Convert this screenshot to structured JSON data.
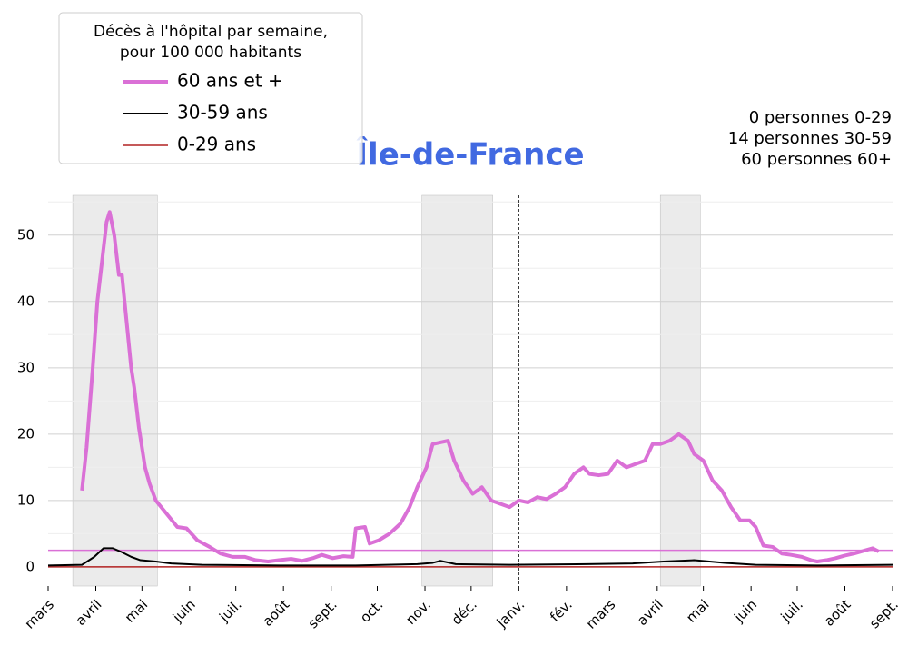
{
  "chart_data": {
    "type": "line",
    "title": "Île-de-France",
    "legend_title": [
      "Décès à l'hôpital par semaine,",
      "pour 100 000 habitants"
    ],
    "annotations": [
      "0 personnes 0-29",
      "14 personnes 30-59",
      "60 personnes 60+"
    ],
    "xlim": [
      0,
      549
    ],
    "ylim": [
      -2.9,
      56
    ],
    "xticks": [
      {
        "value": 0,
        "label": "mars"
      },
      {
        "value": 31,
        "label": "avril"
      },
      {
        "value": 61,
        "label": "mai"
      },
      {
        "value": 92,
        "label": "juin"
      },
      {
        "value": 122,
        "label": "juil."
      },
      {
        "value": 153,
        "label": "août"
      },
      {
        "value": 184,
        "label": "sept."
      },
      {
        "value": 214,
        "label": "oct."
      },
      {
        "value": 245,
        "label": "nov."
      },
      {
        "value": 275,
        "label": "déc."
      },
      {
        "value": 306,
        "label": "janv."
      },
      {
        "value": 337,
        "label": "fév."
      },
      {
        "value": 365,
        "label": "mars"
      },
      {
        "value": 396,
        "label": "avril"
      },
      {
        "value": 426,
        "label": "mai"
      },
      {
        "value": 457,
        "label": "juin"
      },
      {
        "value": 487,
        "label": "juil."
      },
      {
        "value": 518,
        "label": "août"
      },
      {
        "value": 549,
        "label": "sept."
      }
    ],
    "yticks": [
      0,
      10,
      20,
      30,
      40,
      50
    ],
    "minor_yticks": [
      5,
      15,
      25,
      35,
      45,
      55
    ],
    "grid": true,
    "shaded_ranges": [
      [
        16,
        71
      ],
      [
        243,
        289
      ],
      [
        398,
        424
      ]
    ],
    "vline": 306,
    "hline": 2.5,
    "hline_color": "#da70d6",
    "series": [
      {
        "name": "60 ans et +",
        "color": "#da70d6",
        "width": 4,
        "x": [
          22,
          25,
          29,
          32,
          35,
          38,
          40,
          43,
          46,
          48,
          51,
          54,
          56,
          59,
          63,
          66,
          70,
          77,
          84,
          90,
          97,
          105,
          112,
          120,
          128,
          135,
          143,
          150,
          158,
          165,
          172,
          178,
          185,
          192,
          198,
          200,
          206,
          209,
          215,
          222,
          229,
          235,
          240,
          246,
          250,
          256,
          260,
          264,
          270,
          276,
          282,
          288,
          294,
          300,
          306,
          312,
          318,
          324,
          330,
          336,
          342,
          348,
          352,
          358,
          364,
          370,
          376,
          382,
          388,
          393,
          398,
          404,
          410,
          416,
          420,
          426,
          432,
          438,
          444,
          450,
          456,
          460,
          465,
          471,
          477,
          483,
          490,
          496,
          500,
          506,
          512,
          518,
          524,
          530,
          536,
          540
        ],
        "values": [
          11.5,
          18,
          30,
          40,
          46,
          52,
          53.5,
          50,
          44,
          44,
          37,
          30,
          27,
          21,
          15,
          12.5,
          10,
          8,
          6,
          5.8,
          4,
          3,
          2,
          1.5,
          1.5,
          1,
          0.8,
          1,
          1.2,
          0.9,
          1.3,
          1.8,
          1.3,
          1.6,
          1.5,
          5.8,
          6,
          3.5,
          4,
          5,
          6.5,
          9,
          12,
          15,
          18.5,
          18.8,
          19,
          16,
          13,
          11,
          12,
          10,
          9.5,
          9,
          10,
          9.7,
          10.5,
          10.2,
          11,
          12,
          14,
          15,
          14,
          13.8,
          14,
          16,
          15,
          15.5,
          16,
          18.5,
          18.5,
          19,
          20,
          19,
          17,
          16,
          13,
          11.5,
          9,
          7,
          7,
          6,
          3.2,
          3,
          2,
          1.8,
          1.5,
          1,
          0.8,
          1,
          1.3,
          1.7,
          2,
          2.4,
          2.8,
          2.3
        ]
      },
      {
        "name": "30-59 ans",
        "color": "#000000",
        "width": 2,
        "x": [
          0,
          22,
          30,
          36,
          42,
          48,
          54,
          60,
          70,
          80,
          100,
          150,
          200,
          240,
          250,
          255,
          265,
          300,
          350,
          380,
          400,
          420,
          440,
          460,
          500,
          549
        ],
        "values": [
          0.2,
          0.3,
          1.5,
          2.8,
          2.8,
          2.2,
          1.5,
          1,
          0.8,
          0.5,
          0.3,
          0.2,
          0.2,
          0.4,
          0.6,
          0.9,
          0.4,
          0.3,
          0.4,
          0.5,
          0.8,
          1,
          0.6,
          0.3,
          0.2,
          0.3
        ]
      },
      {
        "name": "0-29 ans",
        "color": "#b22222",
        "width": 1.5,
        "x": [
          0,
          100,
          200,
          300,
          400,
          549
        ],
        "values": [
          0,
          0,
          0,
          0,
          0,
          0
        ]
      }
    ]
  }
}
